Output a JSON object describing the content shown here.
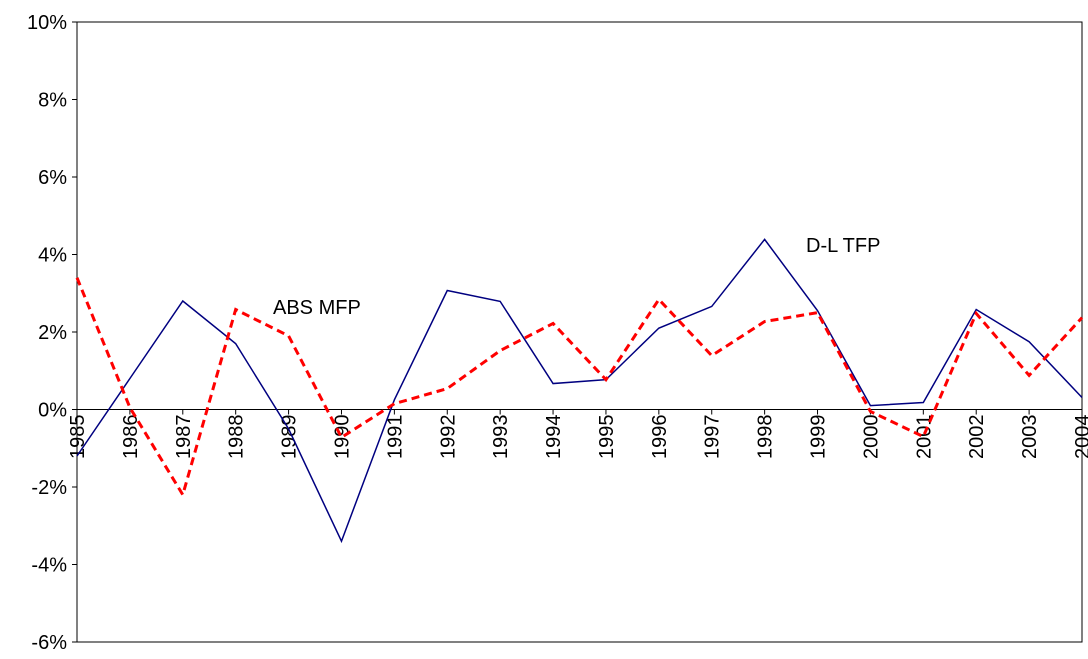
{
  "chart_data": {
    "type": "line",
    "categories": [
      "1985",
      "1986",
      "1987",
      "1988",
      "1989",
      "1990",
      "1991",
      "1992",
      "1993",
      "1994",
      "1995",
      "1996",
      "1997",
      "1998",
      "1999",
      "2000",
      "2001",
      "2002",
      "2003",
      "2004"
    ],
    "series": [
      {
        "name": "D-L TFP",
        "color": "#000080",
        "dash": false,
        "values": [
          -1.2,
          0.8,
          2.8,
          1.7,
          -0.5,
          -3.4,
          0.25,
          3.07,
          2.79,
          0.67,
          0.77,
          2.1,
          2.66,
          4.39,
          2.55,
          0.1,
          0.18,
          2.58,
          1.75,
          0.31
        ]
      },
      {
        "name": "ABS MFP",
        "color": "#ff0000",
        "dash": true,
        "values": [
          3.4,
          0.05,
          -2.2,
          2.58,
          1.9,
          -0.72,
          0.15,
          0.54,
          1.52,
          2.22,
          0.77,
          2.84,
          1.39,
          2.27,
          2.5,
          -0.05,
          -0.7,
          2.48,
          0.88,
          2.37
        ]
      }
    ],
    "ylim": [
      -6,
      10
    ],
    "yticks": [
      {
        "value": -6,
        "label": "-6%"
      },
      {
        "value": -4,
        "label": "-4%"
      },
      {
        "value": -2,
        "label": "-2%"
      },
      {
        "value": 0,
        "label": "0%"
      },
      {
        "value": 2,
        "label": "2%"
      },
      {
        "value": 4,
        "label": "4%"
      },
      {
        "value": 6,
        "label": "6%"
      },
      {
        "value": 8,
        "label": "8%"
      },
      {
        "value": 10,
        "label": "10%"
      }
    ],
    "annotations": [
      "D-L TFP",
      "ABS MFP"
    ]
  }
}
